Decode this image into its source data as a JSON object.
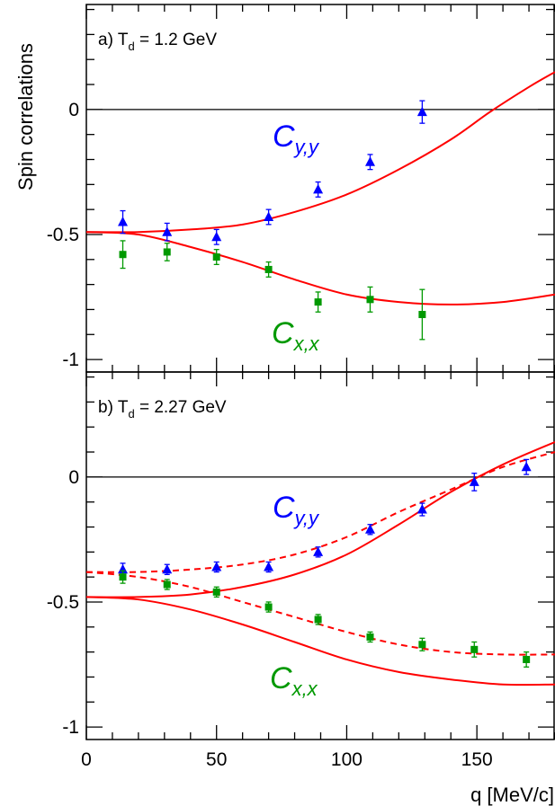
{
  "figure": {
    "ylabel": "Spin correlations",
    "xlabel": "q [MeV/c]"
  },
  "chart_data": [
    {
      "type": "scatter",
      "panel_label": {
        "prefix": "a) T",
        "sub": "d",
        "rest": " = 1.2 GeV"
      },
      "xlabel": "q [MeV/c]",
      "ylabel": "Spin correlations",
      "xlim": [
        0,
        180
      ],
      "ylim": [
        -1.05,
        0.42
      ],
      "x_ticks": [
        0,
        50,
        100,
        150
      ],
      "y_ticks": [
        -1,
        -0.5,
        0
      ],
      "y_tick_labels": [
        "-1",
        "-0.5",
        "0"
      ],
      "zero_line": true,
      "series": [
        {
          "name": "Cy,y",
          "label_main": "C",
          "label_sub": "y,y",
          "marker": "triangle",
          "color": "#0000ff",
          "points": [
            {
              "x": 14,
              "y": -0.45,
              "err": 0.045
            },
            {
              "x": 31,
              "y": -0.49,
              "err": 0.035
            },
            {
              "x": 50,
              "y": -0.51,
              "err": 0.03
            },
            {
              "x": 70,
              "y": -0.43,
              "err": 0.03
            },
            {
              "x": 89,
              "y": -0.32,
              "err": 0.03
            },
            {
              "x": 109,
              "y": -0.21,
              "err": 0.03
            },
            {
              "x": 129,
              "y": -0.01,
              "err": 0.045
            }
          ]
        },
        {
          "name": "Cx,x",
          "label_main": "C",
          "label_sub": "x,x",
          "marker": "square",
          "color": "#009900",
          "points": [
            {
              "x": 14,
              "y": -0.58,
              "err": 0.055
            },
            {
              "x": 31,
              "y": -0.57,
              "err": 0.035
            },
            {
              "x": 50,
              "y": -0.59,
              "err": 0.03
            },
            {
              "x": 70,
              "y": -0.64,
              "err": 0.03
            },
            {
              "x": 89,
              "y": -0.77,
              "err": 0.04
            },
            {
              "x": 109,
              "y": -0.76,
              "err": 0.05
            },
            {
              "x": 129,
              "y": -0.82,
              "err": 0.1
            }
          ]
        }
      ],
      "curves": [
        {
          "name": "Cy,y solid",
          "style": "solid",
          "color": "#ff0000",
          "x": [
            0,
            20,
            40,
            60,
            80,
            100,
            120,
            140,
            155,
            170,
            180
          ],
          "y": [
            -0.49,
            -0.49,
            -0.48,
            -0.46,
            -0.41,
            -0.34,
            -0.24,
            -0.12,
            -0.01,
            0.09,
            0.15
          ]
        },
        {
          "name": "Cx,x solid",
          "style": "solid",
          "color": "#ff0000",
          "x": [
            0,
            20,
            40,
            60,
            80,
            100,
            120,
            140,
            160,
            180
          ],
          "y": [
            -0.49,
            -0.5,
            -0.55,
            -0.61,
            -0.68,
            -0.74,
            -0.77,
            -0.78,
            -0.77,
            -0.74
          ]
        }
      ]
    },
    {
      "type": "scatter",
      "panel_label": {
        "prefix": "b) T",
        "sub": "d",
        "rest": " = 2.27 GeV"
      },
      "xlabel": "q [MeV/c]",
      "ylabel": "Spin correlations",
      "xlim": [
        0,
        180
      ],
      "ylim": [
        -1.05,
        0.42
      ],
      "x_ticks": [
        0,
        50,
        100,
        150
      ],
      "x_tick_labels": [
        "0",
        "50",
        "100",
        "150"
      ],
      "y_ticks": [
        -1,
        -0.5,
        0
      ],
      "y_tick_labels": [
        "-1",
        "-0.5",
        "0"
      ],
      "zero_line": true,
      "series": [
        {
          "name": "Cy,y",
          "label_main": "C",
          "label_sub": "y,y",
          "marker": "triangle",
          "color": "#0000ff",
          "points": [
            {
              "x": 14,
              "y": -0.37,
              "err": 0.025
            },
            {
              "x": 31,
              "y": -0.37,
              "err": 0.02
            },
            {
              "x": 50,
              "y": -0.36,
              "err": 0.02
            },
            {
              "x": 70,
              "y": -0.36,
              "err": 0.02
            },
            {
              "x": 89,
              "y": -0.3,
              "err": 0.02
            },
            {
              "x": 109,
              "y": -0.21,
              "err": 0.02
            },
            {
              "x": 129,
              "y": -0.13,
              "err": 0.025
            },
            {
              "x": 149,
              "y": -0.02,
              "err": 0.035
            },
            {
              "x": 169,
              "y": 0.04,
              "err": 0.03
            }
          ]
        },
        {
          "name": "Cx,x",
          "label_main": "C",
          "label_sub": "x,x",
          "marker": "square",
          "color": "#009900",
          "points": [
            {
              "x": 14,
              "y": -0.4,
              "err": 0.025
            },
            {
              "x": 31,
              "y": -0.43,
              "err": 0.02
            },
            {
              "x": 50,
              "y": -0.46,
              "err": 0.02
            },
            {
              "x": 70,
              "y": -0.52,
              "err": 0.02
            },
            {
              "x": 89,
              "y": -0.57,
              "err": 0.02
            },
            {
              "x": 109,
              "y": -0.64,
              "err": 0.02
            },
            {
              "x": 129,
              "y": -0.67,
              "err": 0.025
            },
            {
              "x": 149,
              "y": -0.69,
              "err": 0.03
            },
            {
              "x": 169,
              "y": -0.73,
              "err": 0.03
            }
          ]
        }
      ],
      "curves": [
        {
          "name": "Cy,y solid",
          "style": "solid",
          "color": "#ff0000",
          "x": [
            0,
            20,
            40,
            60,
            80,
            100,
            120,
            140,
            160,
            180
          ],
          "y": [
            -0.48,
            -0.48,
            -0.47,
            -0.44,
            -0.39,
            -0.31,
            -0.19,
            -0.06,
            0.05,
            0.14
          ]
        },
        {
          "name": "Cy,y dashed",
          "style": "dashed",
          "color": "#ff0000",
          "x": [
            0,
            20,
            40,
            60,
            80,
            100,
            120,
            140,
            160,
            180
          ],
          "y": [
            -0.38,
            -0.38,
            -0.37,
            -0.35,
            -0.31,
            -0.24,
            -0.14,
            -0.05,
            0.04,
            0.1
          ]
        },
        {
          "name": "Cx,x solid",
          "style": "solid",
          "color": "#ff0000",
          "x": [
            0,
            20,
            40,
            60,
            80,
            100,
            120,
            140,
            160,
            180
          ],
          "y": [
            -0.48,
            -0.49,
            -0.53,
            -0.59,
            -0.66,
            -0.73,
            -0.78,
            -0.81,
            -0.83,
            -0.83
          ]
        },
        {
          "name": "Cx,x dashed",
          "style": "dashed",
          "color": "#ff0000",
          "x": [
            0,
            20,
            40,
            60,
            80,
            100,
            120,
            140,
            160,
            180
          ],
          "y": [
            -0.38,
            -0.4,
            -0.44,
            -0.5,
            -0.56,
            -0.62,
            -0.67,
            -0.7,
            -0.71,
            -0.71
          ]
        }
      ]
    }
  ]
}
